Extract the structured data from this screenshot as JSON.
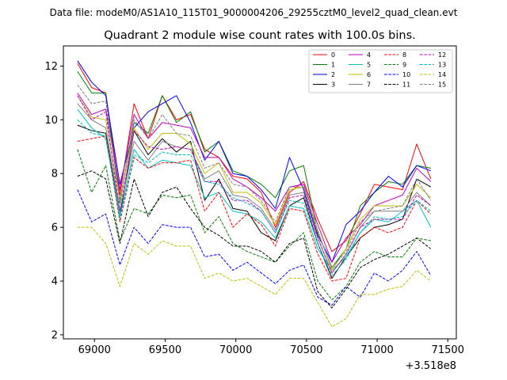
{
  "chart_data": {
    "type": "line",
    "suptitle": "Data file: modeM0/AS1A10_115T01_9000004206_29255cztM0_level2_quad_clean.evt",
    "title": "Quadrant 2 module wise count rates with 100.0s bins.",
    "xlabel": "",
    "ylabel": "",
    "x_offset_label": "+3.518e8",
    "xlim": [
      68780,
      71560
    ],
    "ylim": [
      1.85,
      12.75
    ],
    "xticks": [
      69000,
      69500,
      70000,
      70500,
      71000,
      71500
    ],
    "xtick_labels": [
      "69000",
      "69500",
      "70000",
      "70500",
      "71000",
      "71500"
    ],
    "yticks": [
      2,
      4,
      6,
      8,
      10,
      12
    ],
    "ytick_labels": [
      "2",
      "4",
      "6",
      "8",
      "10",
      "12"
    ],
    "legend_position": "top-right",
    "x": [
      68880,
      68980,
      69080,
      69180,
      69280,
      69380,
      69480,
      69580,
      69680,
      69780,
      69880,
      69980,
      70080,
      70180,
      70280,
      70380,
      70480,
      70580,
      70680,
      70780,
      70880,
      70980,
      71080,
      71180,
      71280,
      71380
    ],
    "series": [
      {
        "name": "0",
        "color": "#ff0000",
        "dash": "solid",
        "values": [
          12.1,
          11.2,
          11.0,
          7.2,
          10.6,
          9.3,
          10.9,
          10.0,
          10.2,
          8.9,
          8.6,
          7.9,
          7.8,
          7.3,
          6.0,
          7.3,
          7.7,
          6.3,
          5.1,
          5.5,
          6.5,
          7.6,
          7.5,
          7.4,
          9.1,
          7.8
        ]
      },
      {
        "name": "1",
        "color": "#008000",
        "dash": "solid",
        "values": [
          11.8,
          11.0,
          11.0,
          6.9,
          9.9,
          9.5,
          10.9,
          9.9,
          10.3,
          8.8,
          9.2,
          8.1,
          7.9,
          7.6,
          7.1,
          8.1,
          8.3,
          5.8,
          4.5,
          5.2,
          6.8,
          7.3,
          7.7,
          7.6,
          8.3,
          8.2
        ]
      },
      {
        "name": "2",
        "color": "#0000ff",
        "dash": "solid",
        "values": [
          12.2,
          11.4,
          10.9,
          7.6,
          9.7,
          10.3,
          10.6,
          10.9,
          9.9,
          8.5,
          9.2,
          8.0,
          7.9,
          7.4,
          6.7,
          8.6,
          7.4,
          5.7,
          4.7,
          6.1,
          6.6,
          7.3,
          7.9,
          7.5,
          8.3,
          8.1
        ]
      },
      {
        "name": "3",
        "color": "#000000",
        "dash": "solid",
        "values": [
          9.8,
          9.6,
          9.5,
          6.4,
          9.6,
          8.7,
          9.3,
          8.8,
          9.2,
          7.0,
          7.8,
          6.7,
          6.6,
          5.8,
          5.5,
          6.8,
          7.1,
          5.4,
          4.1,
          4.9,
          5.6,
          6.0,
          6.1,
          6.3,
          7.8,
          7.5
        ]
      },
      {
        "name": "4",
        "color": "#bf00bf",
        "dash": "solid",
        "values": [
          11.0,
          10.2,
          10.4,
          7.4,
          10.2,
          9.3,
          9.9,
          9.8,
          9.7,
          8.6,
          8.6,
          7.8,
          7.5,
          7.1,
          6.6,
          7.5,
          7.6,
          6.1,
          4.7,
          5.6,
          6.1,
          6.8,
          7.0,
          7.2,
          8.2,
          7.7
        ]
      },
      {
        "name": "5",
        "color": "#00bfbf",
        "dash": "solid",
        "values": [
          10.4,
          9.7,
          9.3,
          6.4,
          8.9,
          8.2,
          8.5,
          8.4,
          8.3,
          7.1,
          7.3,
          6.6,
          6.5,
          6.2,
          5.6,
          6.8,
          6.7,
          5.2,
          4.4,
          4.9,
          5.8,
          6.3,
          6.2,
          6.6,
          7.0,
          6.0
        ]
      },
      {
        "name": "6",
        "color": "#bfbf00",
        "dash": "solid",
        "values": [
          10.9,
          10.1,
          10.0,
          7.0,
          9.7,
          8.9,
          9.5,
          9.5,
          9.1,
          8.0,
          8.4,
          7.3,
          7.3,
          6.9,
          6.1,
          7.4,
          7.5,
          5.9,
          4.4,
          5.2,
          6.3,
          6.8,
          6.8,
          6.8,
          7.6,
          7.1
        ]
      },
      {
        "name": "7",
        "color": "#808080",
        "dash": "solid",
        "values": [
          10.6,
          10.0,
          9.7,
          6.6,
          9.2,
          8.5,
          9.2,
          9.0,
          8.9,
          7.8,
          8.1,
          7.2,
          7.1,
          6.7,
          5.9,
          7.2,
          7.3,
          5.6,
          4.3,
          5.0,
          6.0,
          6.6,
          6.6,
          6.6,
          7.3,
          6.8
        ]
      },
      {
        "name": "8",
        "color": "#ff0000",
        "dash": "dashed",
        "values": [
          9.2,
          9.3,
          9.4,
          6.2,
          8.6,
          8.2,
          8.4,
          8.4,
          8.5,
          6.6,
          7.3,
          6.0,
          6.5,
          6.1,
          5.3,
          6.7,
          6.6,
          5.0,
          4.0,
          4.1,
          5.6,
          6.0,
          5.8,
          6.0,
          7.0,
          6.5
        ]
      },
      {
        "name": "9",
        "color": "#008000",
        "dash": "dashed",
        "values": [
          8.9,
          7.3,
          8.3,
          5.5,
          6.7,
          6.5,
          7.2,
          7.1,
          7.2,
          5.8,
          6.4,
          5.4,
          5.1,
          4.9,
          4.7,
          5.3,
          5.8,
          4.0,
          3.3,
          3.8,
          4.7,
          5.1,
          4.9,
          4.9,
          5.6,
          5.5
        ]
      },
      {
        "name": "10",
        "color": "#0000ff",
        "dash": "dashed",
        "values": [
          7.4,
          6.2,
          6.5,
          4.6,
          6.0,
          5.4,
          6.1,
          6.0,
          6.0,
          4.9,
          5.0,
          4.4,
          4.7,
          4.3,
          3.9,
          4.4,
          4.6,
          3.4,
          3.1,
          3.8,
          3.4,
          4.3,
          4.0,
          4.4,
          5.1,
          4.2
        ]
      },
      {
        "name": "11",
        "color": "#000000",
        "dash": "dashed",
        "values": [
          7.9,
          8.1,
          7.8,
          5.4,
          7.8,
          6.4,
          7.3,
          7.5,
          6.7,
          6.0,
          5.7,
          5.3,
          5.3,
          5.1,
          4.7,
          5.4,
          5.6,
          3.6,
          3.0,
          3.7,
          4.5,
          4.8,
          5.0,
          5.3,
          5.6,
          5.2
        ]
      },
      {
        "name": "12",
        "color": "#bf00bf",
        "dash": "dashed",
        "values": [
          10.9,
          10.0,
          10.3,
          6.6,
          9.6,
          9.0,
          8.9,
          9.0,
          8.9,
          7.7,
          7.7,
          7.0,
          7.0,
          6.6,
          5.8,
          7.1,
          7.2,
          5.6,
          4.3,
          5.0,
          6.0,
          6.3,
          6.3,
          6.3,
          7.2,
          6.8
        ]
      },
      {
        "name": "13",
        "color": "#00bfbf",
        "dash": "dashed",
        "values": [
          10.0,
          9.5,
          9.4,
          6.3,
          8.7,
          8.4,
          8.8,
          8.7,
          8.7,
          7.7,
          7.6,
          7.1,
          6.9,
          6.6,
          5.8,
          7.0,
          6.9,
          5.4,
          4.2,
          4.8,
          5.8,
          6.4,
          6.3,
          6.4,
          7.0,
          6.6
        ]
      },
      {
        "name": "14",
        "color": "#bfbf00",
        "dash": "dashed",
        "values": [
          6.0,
          6.0,
          5.4,
          3.8,
          5.4,
          5.0,
          5.5,
          5.3,
          5.3,
          4.1,
          4.3,
          4.0,
          4.1,
          3.8,
          3.5,
          4.1,
          4.1,
          3.2,
          2.3,
          2.6,
          3.5,
          3.5,
          3.7,
          3.8,
          4.4,
          4.0
        ]
      },
      {
        "name": "15",
        "color": "#808080",
        "dash": "dashed",
        "values": [
          11.3,
          10.6,
          10.7,
          7.0,
          10.0,
          9.3,
          10.2,
          9.5,
          9.4,
          8.2,
          8.4,
          7.6,
          7.5,
          7.0,
          6.2,
          7.5,
          7.5,
          5.8,
          4.5,
          5.1,
          6.2,
          6.6,
          6.7,
          6.8,
          7.8,
          7.0
        ]
      }
    ]
  }
}
